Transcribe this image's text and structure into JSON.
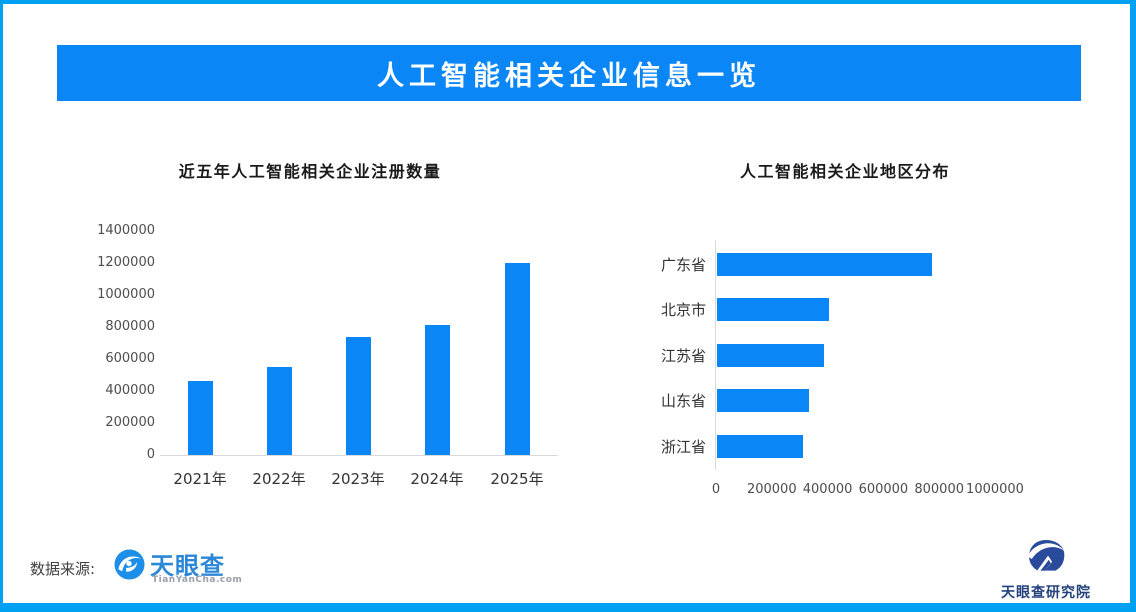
{
  "page": {
    "title_banner": "人工智能相关企业信息一览"
  },
  "footer": {
    "source_label": "数据来源:",
    "tianyancha_logo_text": "天眼查",
    "tianyancha_logo_sub": "TianYanCha.com",
    "research_logo_text": "天眼查研究院"
  },
  "colors": {
    "accent_blue": "#0A86F6",
    "frame_border": "#00A0F2",
    "tianyancha_blue": "#2B87D8",
    "research_navy": "#2A4A9B",
    "axis_gray": "#d9d9d9"
  },
  "chart_data": [
    {
      "type": "bar",
      "orientation": "vertical",
      "title": "近五年人工智能相关企业注册数量",
      "categories": [
        "2021年",
        "2022年",
        "2023年",
        "2024年",
        "2025年"
      ],
      "values": [
        460000,
        550000,
        740000,
        810000,
        1200000
      ],
      "ylim": [
        0,
        1400000
      ],
      "yticks": [
        0,
        200000,
        400000,
        600000,
        800000,
        1000000,
        1200000,
        1400000
      ],
      "xlabel": "",
      "ylabel": "",
      "grid": false,
      "legend": false,
      "bar_color": "#0A86F6"
    },
    {
      "type": "bar",
      "orientation": "horizontal",
      "title": "人工智能相关企业地区分布",
      "categories": [
        "广东省",
        "北京市",
        "江苏省",
        "山东省",
        "浙江省"
      ],
      "values": [
        770000,
        400000,
        385000,
        330000,
        310000
      ],
      "xlim": [
        0,
        1000000
      ],
      "xticks": [
        0,
        200000,
        400000,
        600000,
        800000,
        1000000
      ],
      "xlabel": "",
      "ylabel": "",
      "grid": false,
      "legend": false,
      "bar_color": "#0A86F6"
    }
  ]
}
